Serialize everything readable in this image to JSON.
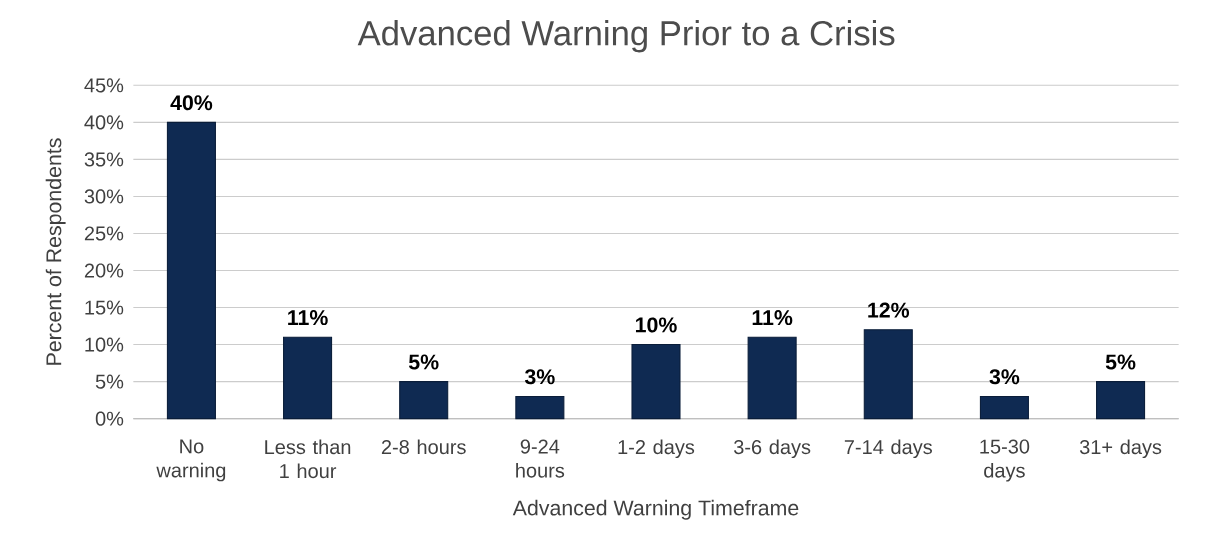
{
  "chart_data": {
    "type": "bar",
    "title": "Advanced Warning Prior to a Crisis",
    "xlabel": "Advanced Warning Timeframe",
    "ylabel": "Percent of Respondents",
    "categories": [
      "No warning",
      "Less than 1 hour",
      "2-8 hours",
      "9-24 hours",
      "1-2 days",
      "3-6 days",
      "7-14 days",
      "15-30 days",
      "31+ days"
    ],
    "values": [
      40,
      11,
      5,
      3,
      10,
      11,
      12,
      3,
      5
    ],
    "value_labels": [
      "40%",
      "11%",
      "5%",
      "3%",
      "10%",
      "11%",
      "12%",
      "3%",
      "5%"
    ],
    "color": "#0f2a52",
    "ylim": [
      0,
      45
    ],
    "yticks": [
      {
        "value": 0,
        "label": "0%"
      },
      {
        "value": 5,
        "label": "5%"
      },
      {
        "value": 10,
        "label": "10%"
      },
      {
        "value": 15,
        "label": "15%"
      },
      {
        "value": 20,
        "label": "20%"
      },
      {
        "value": 25,
        "label": "25%"
      },
      {
        "value": 30,
        "label": "30%"
      },
      {
        "value": 35,
        "label": "35%"
      },
      {
        "value": 40,
        "label": "40%"
      },
      {
        "value": 45,
        "label": "45%"
      }
    ],
    "grid": "y"
  }
}
